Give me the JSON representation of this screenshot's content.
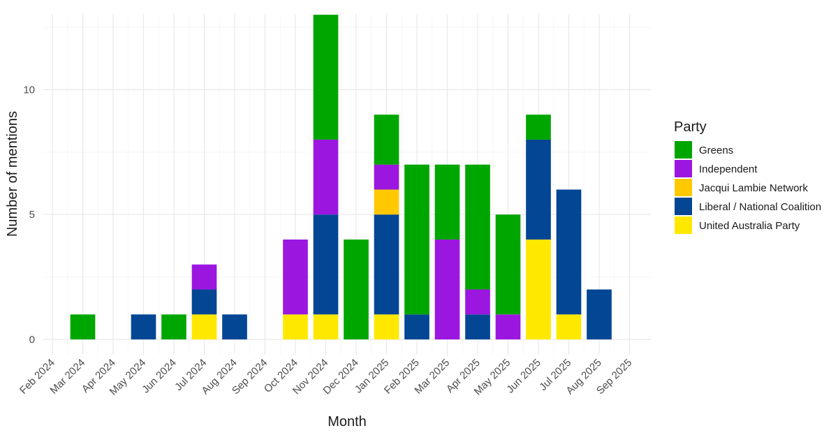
{
  "chart_data": {
    "type": "bar",
    "stacked": true,
    "xlabel": "Month",
    "ylabel": "Number of mentions",
    "ylim": [
      0,
      13.6
    ],
    "yticks": [
      0,
      5,
      10
    ],
    "grid": true,
    "legend": {
      "title": "Party",
      "position": "right"
    },
    "categories": [
      "Feb 2024",
      "Mar 2024",
      "Apr 2024",
      "May 2024",
      "Jun 2024",
      "Jul 2024",
      "Aug 2024",
      "Sep 2024",
      "Oct 2024",
      "Nov 2024",
      "Dec 2024",
      "Jan 2025",
      "Feb 2025",
      "Mar 2025",
      "Apr 2025",
      "May 2025",
      "Jun 2025",
      "Jul 2025",
      "Aug 2025",
      "Sep 2025"
    ],
    "stack_order_bottom_to_top": [
      "United Australia Party",
      "Liberal / National Coalition",
      "Jacqui Lambie Network",
      "Independent",
      "Greens"
    ],
    "series": [
      {
        "name": "Greens",
        "color": "#00a600",
        "values": [
          0,
          1,
          0,
          0,
          1,
          0,
          0,
          0,
          0,
          5,
          4,
          2,
          6,
          3,
          5,
          4,
          1,
          0,
          0,
          0
        ]
      },
      {
        "name": "Independent",
        "color": "#9b17e0",
        "values": [
          0,
          0,
          0,
          0,
          0,
          1,
          0,
          0,
          3,
          3,
          0,
          1,
          0,
          4,
          1,
          1,
          0,
          0,
          0,
          0
        ]
      },
      {
        "name": "Jacqui Lambie Network",
        "color": "#ffc800",
        "values": [
          0,
          0,
          0,
          0,
          0,
          0,
          0,
          0,
          0,
          0,
          0,
          1,
          0,
          0,
          0,
          0,
          0,
          0,
          0,
          0
        ]
      },
      {
        "name": "Liberal / National Coalition",
        "color": "#024694",
        "values": [
          0,
          0,
          0,
          1,
          0,
          1,
          1,
          0,
          0,
          4,
          0,
          4,
          1,
          0,
          1,
          0,
          4,
          5,
          2,
          0
        ]
      },
      {
        "name": "United Australia Party",
        "color": "#ffe800",
        "values": [
          0,
          0,
          0,
          0,
          0,
          1,
          0,
          0,
          1,
          1,
          0,
          1,
          0,
          0,
          0,
          0,
          4,
          1,
          0,
          0
        ]
      }
    ]
  }
}
